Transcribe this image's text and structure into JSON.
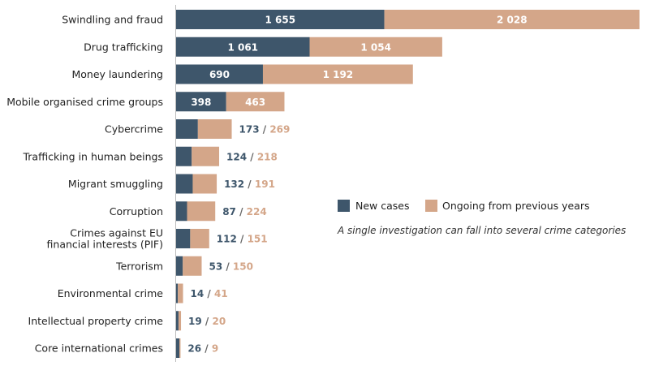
{
  "chart_data": {
    "type": "bar",
    "orientation": "horizontal",
    "stacked": true,
    "categories": [
      [
        "Swindling and fraud"
      ],
      [
        "Drug trafficking"
      ],
      [
        "Money laundering"
      ],
      [
        "Mobile organised crime groups"
      ],
      [
        "Cybercrime"
      ],
      [
        "Trafficking in human beings"
      ],
      [
        "Migrant smuggling"
      ],
      [
        "Corruption"
      ],
      [
        "Crimes against EU",
        "financial interests (PIF)"
      ],
      [
        "Terrorism"
      ],
      [
        "Environmental crime"
      ],
      [
        "Intellectual property crime"
      ],
      [
        "Core international crimes"
      ]
    ],
    "series": [
      {
        "name": "New cases",
        "color": "#3e566b",
        "values": [
          1655,
          1061,
          690,
          398,
          173,
          124,
          132,
          87,
          112,
          53,
          14,
          19,
          26
        ],
        "labels": [
          "1 655",
          "1 061",
          "690",
          "398",
          "173",
          "124",
          "132",
          "87",
          "112",
          "53",
          "14",
          "19",
          "26"
        ]
      },
      {
        "name": "Ongoing from previous years",
        "color": "#d4a689",
        "values": [
          2028,
          1054,
          1192,
          463,
          269,
          218,
          191,
          224,
          151,
          150,
          41,
          20,
          9
        ],
        "labels": [
          "2 028",
          "1 054",
          "1 192",
          "463",
          "269",
          "218",
          "191",
          "224",
          "151",
          "150",
          "41",
          "20",
          "9"
        ]
      }
    ],
    "separator": " / ",
    "legend_placement": "right",
    "note": "A single investigation can fall into several crime categories",
    "xlim": [
      0,
      3683
    ],
    "grid": false
  }
}
